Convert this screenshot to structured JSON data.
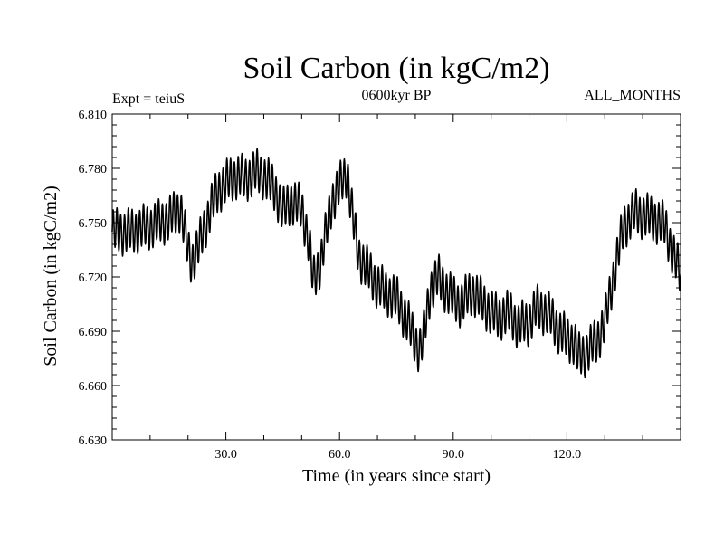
{
  "chart_data": {
    "type": "line",
    "title": "Soil Carbon (in kgC/m2)",
    "subtitle_left": "Expt = teiuS",
    "subtitle_center": "0600kyr BP",
    "subtitle_right": "ALL_MONTHS",
    "xlabel": "Time (in years since start)",
    "ylabel": "Soil Carbon (in kgC/m2)",
    "xlim": [
      0,
      150
    ],
    "ylim": [
      6.63,
      6.81
    ],
    "x_ticks": [
      30,
      60,
      90,
      120
    ],
    "x_tick_labels": [
      "30.0",
      "60.0",
      "90.0",
      "120.0"
    ],
    "y_ticks": [
      6.63,
      6.66,
      6.69,
      6.72,
      6.75,
      6.78,
      6.81
    ],
    "y_tick_labels": [
      "6.630",
      "6.660",
      "6.690",
      "6.720",
      "6.750",
      "6.780",
      "6.810"
    ],
    "series": [
      {
        "name": "Soil Carbon",
        "seasonal_amplitude": 0.011,
        "samples_per_year": 12,
        "annual_mean_years": [
          0,
          5,
          10,
          15,
          18,
          20,
          21,
          23,
          26,
          28,
          30,
          33,
          35,
          38,
          40,
          43,
          45,
          47,
          50,
          52,
          53,
          55,
          58,
          60,
          62,
          63,
          65,
          68,
          70,
          72,
          75,
          78,
          80,
          81,
          82,
          84,
          86,
          88,
          90,
          92,
          95,
          97,
          100,
          102,
          105,
          107,
          110,
          112,
          115,
          118,
          120,
          122,
          123,
          125,
          128,
          130,
          133,
          135,
          138,
          140,
          143,
          146,
          148,
          150
        ],
        "annual_mean_values": [
          6.745,
          6.745,
          6.748,
          6.752,
          6.758,
          6.735,
          6.728,
          6.738,
          6.758,
          6.768,
          6.772,
          6.776,
          6.774,
          6.778,
          6.776,
          6.768,
          6.756,
          6.762,
          6.758,
          6.738,
          6.718,
          6.728,
          6.762,
          6.77,
          6.778,
          6.76,
          6.732,
          6.722,
          6.715,
          6.712,
          6.708,
          6.695,
          6.684,
          6.68,
          6.685,
          6.713,
          6.72,
          6.713,
          6.708,
          6.705,
          6.712,
          6.708,
          6.7,
          6.698,
          6.7,
          6.693,
          6.695,
          6.703,
          6.7,
          6.69,
          6.686,
          6.684,
          6.676,
          6.678,
          6.685,
          6.695,
          6.728,
          6.748,
          6.756,
          6.754,
          6.752,
          6.748,
          6.732,
          6.722
        ]
      }
    ]
  }
}
